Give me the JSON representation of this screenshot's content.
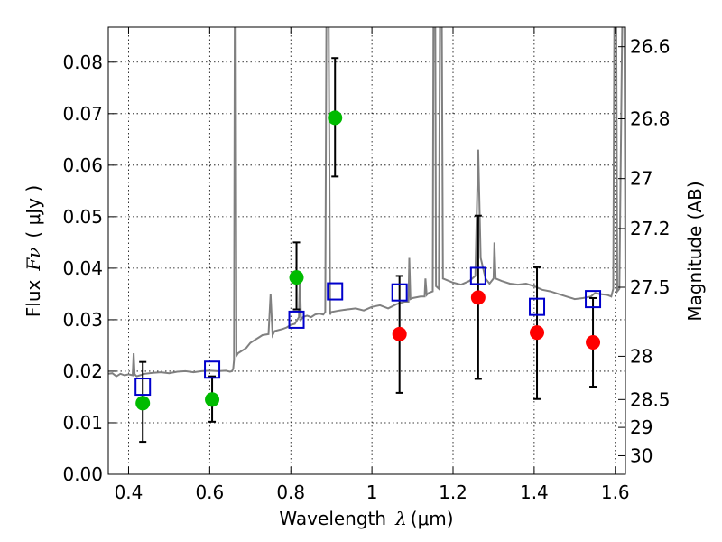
{
  "chart_data": {
    "type": "scatter",
    "xlabel": "Wavelength",
    "xlabel_symbol": "λ",
    "xlabel_unit": "(μm)",
    "ylabel": "Flux",
    "ylabel_symbol": "Fν",
    "ylabel_unit": "( μJy )",
    "y2label": "Magnitude (AB)",
    "xlim": [
      0.35,
      1.625
    ],
    "ylim": [
      0.0,
      0.0868
    ],
    "grid": true,
    "x_ticks": [
      0.4,
      0.6,
      0.8,
      1.0,
      1.2,
      1.4,
      1.6
    ],
    "x_tick_labels": [
      "0.4",
      "0.6",
      "0.8",
      "1",
      "1.2",
      "1.4",
      "1.6"
    ],
    "y_ticks": [
      0.0,
      0.01,
      0.02,
      0.03,
      0.04,
      0.05,
      0.06,
      0.07,
      0.08
    ],
    "y_tick_labels": [
      "0.00",
      "0.01",
      "0.02",
      "0.03",
      "0.04",
      "0.05",
      "0.06",
      "0.07",
      "0.08"
    ],
    "magnitude_ticks": [
      {
        "label": "26.6",
        "flux": 0.083
      },
      {
        "label": "26.8",
        "flux": 0.069
      },
      {
        "label": "27",
        "flux": 0.0574
      },
      {
        "label": "27.2",
        "flux": 0.0477
      },
      {
        "label": "27.5",
        "flux": 0.0363
      },
      {
        "label": "28",
        "flux": 0.0229
      },
      {
        "label": "28.5",
        "flux": 0.0145
      },
      {
        "label": "29",
        "flux": 0.0091
      },
      {
        "label": "30",
        "flux": 0.0036
      }
    ],
    "colors": {
      "spectrum": "#808080",
      "detections": "#00bb00",
      "measurements": "#ff0000",
      "model_boxes": "#0000cc",
      "error_bars": "#000000"
    },
    "spectrum": [
      [
        0.35,
        0.0195
      ],
      [
        0.36,
        0.0196
      ],
      [
        0.37,
        0.019
      ],
      [
        0.38,
        0.0195
      ],
      [
        0.39,
        0.0192
      ],
      [
        0.4,
        0.0194
      ],
      [
        0.41,
        0.0192
      ],
      [
        0.4125,
        0.0235
      ],
      [
        0.415,
        0.0194
      ],
      [
        0.42,
        0.019
      ],
      [
        0.44,
        0.0195
      ],
      [
        0.46,
        0.0197
      ],
      [
        0.48,
        0.0198
      ],
      [
        0.5,
        0.0196
      ],
      [
        0.52,
        0.0199
      ],
      [
        0.54,
        0.02
      ],
      [
        0.56,
        0.0198
      ],
      [
        0.58,
        0.02
      ],
      [
        0.6,
        0.0201
      ],
      [
        0.62,
        0.02
      ],
      [
        0.64,
        0.0201
      ],
      [
        0.65,
        0.0199
      ],
      [
        0.655,
        0.02
      ],
      [
        0.658,
        0.0205
      ],
      [
        0.66,
        0.0222
      ],
      [
        0.662,
        0.095
      ],
      [
        0.664,
        0.095
      ],
      [
        0.666,
        0.023
      ],
      [
        0.67,
        0.0235
      ],
      [
        0.68,
        0.024
      ],
      [
        0.69,
        0.0245
      ],
      [
        0.7,
        0.0255
      ],
      [
        0.71,
        0.026
      ],
      [
        0.72,
        0.0265
      ],
      [
        0.73,
        0.027
      ],
      [
        0.745,
        0.0272
      ],
      [
        0.75,
        0.035
      ],
      [
        0.755,
        0.027
      ],
      [
        0.76,
        0.0278
      ],
      [
        0.78,
        0.0282
      ],
      [
        0.79,
        0.0285
      ],
      [
        0.8,
        0.029
      ],
      [
        0.81,
        0.0292
      ],
      [
        0.82,
        0.0305
      ],
      [
        0.8225,
        0.039
      ],
      [
        0.825,
        0.03
      ],
      [
        0.83,
        0.0305
      ],
      [
        0.84,
        0.0308
      ],
      [
        0.85,
        0.0305
      ],
      [
        0.86,
        0.031
      ],
      [
        0.87,
        0.0312
      ],
      [
        0.88,
        0.031
      ],
      [
        0.885,
        0.0315
      ],
      [
        0.888,
        0.095
      ],
      [
        0.893,
        0.095
      ],
      [
        0.897,
        0.031
      ],
      [
        0.9,
        0.0315
      ],
      [
        0.92,
        0.0318
      ],
      [
        0.94,
        0.032
      ],
      [
        0.96,
        0.0322
      ],
      [
        0.98,
        0.0318
      ],
      [
        1.0,
        0.0325
      ],
      [
        1.02,
        0.0328
      ],
      [
        1.04,
        0.0322
      ],
      [
        1.06,
        0.033
      ],
      [
        1.08,
        0.0335
      ],
      [
        1.09,
        0.0335
      ],
      [
        1.092,
        0.042
      ],
      [
        1.095,
        0.034
      ],
      [
        1.1,
        0.0342
      ],
      [
        1.12,
        0.0345
      ],
      [
        1.13,
        0.0345
      ],
      [
        1.132,
        0.038
      ],
      [
        1.135,
        0.0348
      ],
      [
        1.14,
        0.0352
      ],
      [
        1.15,
        0.0355
      ],
      [
        1.152,
        0.095
      ],
      [
        1.156,
        0.095
      ],
      [
        1.158,
        0.0365
      ],
      [
        1.165,
        0.036
      ],
      [
        1.168,
        0.095
      ],
      [
        1.172,
        0.095
      ],
      [
        1.175,
        0.038
      ],
      [
        1.2,
        0.0372
      ],
      [
        1.22,
        0.0368
      ],
      [
        1.24,
        0.0375
      ],
      [
        1.255,
        0.0385
      ],
      [
        1.262,
        0.063
      ],
      [
        1.268,
        0.042
      ],
      [
        1.28,
        0.038
      ],
      [
        1.29,
        0.037
      ],
      [
        1.3,
        0.038
      ],
      [
        1.302,
        0.045
      ],
      [
        1.305,
        0.038
      ],
      [
        1.32,
        0.0375
      ],
      [
        1.34,
        0.037
      ],
      [
        1.36,
        0.0368
      ],
      [
        1.38,
        0.037
      ],
      [
        1.4,
        0.0365
      ],
      [
        1.42,
        0.0358
      ],
      [
        1.44,
        0.0355
      ],
      [
        1.46,
        0.035
      ],
      [
        1.48,
        0.0345
      ],
      [
        1.5,
        0.034
      ],
      [
        1.52,
        0.0342
      ],
      [
        1.54,
        0.0345
      ],
      [
        1.55,
        0.0352
      ],
      [
        1.56,
        0.035
      ],
      [
        1.58,
        0.0348
      ],
      [
        1.59,
        0.0345
      ],
      [
        1.595,
        0.036
      ],
      [
        1.598,
        0.095
      ],
      [
        1.602,
        0.095
      ],
      [
        1.605,
        0.0355
      ],
      [
        1.61,
        0.036
      ],
      [
        1.618,
        0.095
      ],
      [
        1.622,
        0.095
      ],
      [
        1.625,
        0.036
      ]
    ],
    "detections": [
      {
        "x": 0.435,
        "y": 0.0138,
        "ylo": 0.0063,
        "yhi": 0.0218
      },
      {
        "x": 0.606,
        "y": 0.0145,
        "ylo": 0.0102,
        "yhi": 0.019
      },
      {
        "x": 0.814,
        "y": 0.0382,
        "ylo": 0.032,
        "yhi": 0.045
      },
      {
        "x": 0.909,
        "y": 0.0692,
        "ylo": 0.0578,
        "yhi": 0.0808
      }
    ],
    "measurements": [
      {
        "x": 1.068,
        "y": 0.0272,
        "ylo": 0.0158,
        "yhi": 0.0385
      },
      {
        "x": 1.262,
        "y": 0.0343,
        "ylo": 0.0185,
        "yhi": 0.0502
      },
      {
        "x": 1.407,
        "y": 0.0275,
        "ylo": 0.0146,
        "yhi": 0.0402
      },
      {
        "x": 1.545,
        "y": 0.0256,
        "ylo": 0.017,
        "yhi": 0.0342
      }
    ],
    "model_boxes": [
      {
        "x": 0.435,
        "y": 0.017
      },
      {
        "x": 0.606,
        "y": 0.0203
      },
      {
        "x": 0.814,
        "y": 0.03
      },
      {
        "x": 0.909,
        "y": 0.0355
      },
      {
        "x": 1.068,
        "y": 0.0353
      },
      {
        "x": 1.262,
        "y": 0.0385
      },
      {
        "x": 1.407,
        "y": 0.0325
      },
      {
        "x": 1.545,
        "y": 0.034
      }
    ]
  }
}
